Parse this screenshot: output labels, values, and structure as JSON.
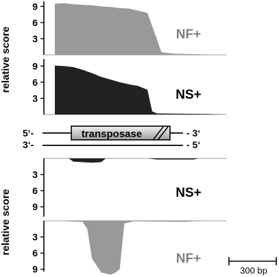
{
  "chart_data": {
    "type": "area",
    "y_label": "relative score",
    "y_ticks": [
      "3",
      "6",
      "9"
    ],
    "panels": [
      {
        "label": "NF+",
        "color": "#999999",
        "label_color": "#7f7f7f",
        "direction": "up",
        "x_bp": [
          0,
          20,
          40,
          60,
          80,
          100,
          120,
          140,
          160,
          180,
          200,
          220,
          230,
          260,
          320,
          360
        ],
        "y": [
          9.5,
          9.6,
          9.4,
          9.3,
          9.2,
          9.0,
          8.9,
          8.7,
          8.6,
          8.2,
          7.8,
          3.0,
          0.5,
          0.2,
          0.1,
          0
        ]
      },
      {
        "label": "NS+",
        "color": "#222222",
        "label_color": "#000000",
        "direction": "up",
        "x_bp": [
          0,
          20,
          40,
          60,
          80,
          100,
          120,
          140,
          160,
          180,
          200,
          210,
          220,
          260,
          330,
          370
        ],
        "y": [
          9.1,
          9.0,
          8.8,
          8.3,
          7.7,
          7.0,
          6.5,
          6.0,
          5.6,
          5.3,
          4.6,
          0.6,
          0.2,
          0.15,
          0.1,
          0
        ]
      },
      {
        "label": "NS+",
        "color": "#222222",
        "label_color": "#000000",
        "direction": "down",
        "x_bp": [
          0,
          30,
          40,
          60,
          80,
          100,
          110,
          150,
          200,
          220,
          300,
          310,
          360
        ],
        "y": [
          0,
          0,
          0.6,
          0.7,
          0.8,
          0.7,
          0,
          0,
          0,
          0.2,
          0.2,
          0,
          0
        ]
      },
      {
        "label": "NF+",
        "color": "#999999",
        "label_color": "#7f7f7f",
        "direction": "down",
        "x_bp": [
          0,
          60,
          70,
          80,
          100,
          120,
          130,
          140,
          150,
          170,
          280,
          300,
          360
        ],
        "y": [
          0,
          0.2,
          1.5,
          7.0,
          9.6,
          10.0,
          9.7,
          9.0,
          0.5,
          0.1,
          0.2,
          0.1,
          0
        ]
      }
    ],
    "gene": {
      "name": "transposase",
      "top_strand": [
        "5‘-",
        "- 3‘"
      ],
      "bottom_strand": [
        "3‘-",
        "- 5‘"
      ]
    },
    "scale_bar": "300 bp"
  }
}
